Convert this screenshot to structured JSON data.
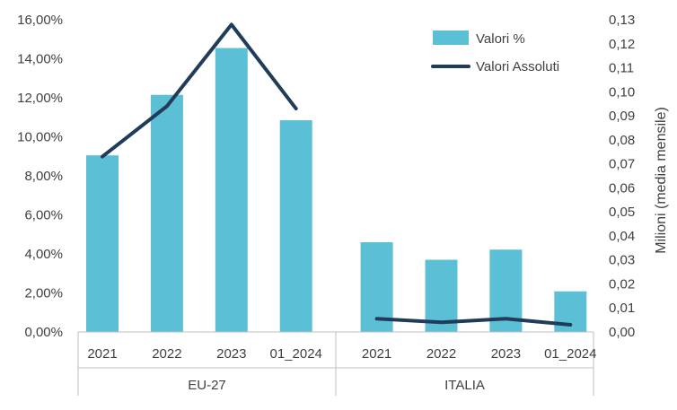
{
  "chart_data": {
    "type": "bar+line",
    "title": "",
    "groups": [
      {
        "name": "EU-27",
        "categories": [
          "2021",
          "2022",
          "2023",
          "01_2024"
        ]
      },
      {
        "name": "ITALIA",
        "categories": [
          "2021",
          "2022",
          "2023",
          "01_2024"
        ]
      }
    ],
    "series": [
      {
        "name": "Valori %",
        "type": "bar",
        "axis": "left",
        "color": "#5bc0d6",
        "values": [
          0.0905,
          0.1215,
          0.1455,
          0.1085,
          0.046,
          0.037,
          0.0422,
          0.0208
        ]
      },
      {
        "name": "Valori Assoluti",
        "type": "line",
        "axis": "right",
        "color": "#203c58",
        "values": [
          0.073,
          0.094,
          0.128,
          0.093,
          0.0055,
          0.004,
          0.0055,
          0.003
        ]
      }
    ],
    "y_left": {
      "min": 0,
      "max": 0.16,
      "step": 0.02,
      "tick_labels": [
        "0,00%",
        "2,00%",
        "4,00%",
        "6,00%",
        "8,00%",
        "10,00%",
        "12,00%",
        "14,00%",
        "16,00%"
      ]
    },
    "y_right": {
      "min": 0,
      "max": 0.13,
      "step": 0.01,
      "label": "Milioni (media mensile)",
      "tick_labels": [
        "0,00",
        "0,01",
        "0,02",
        "0,03",
        "0,04",
        "0,05",
        "0,06",
        "0,07",
        "0,08",
        "0,09",
        "0,10",
        "0,11",
        "0,12",
        "0,13"
      ]
    },
    "grid": false,
    "legend_position": "top-right"
  }
}
